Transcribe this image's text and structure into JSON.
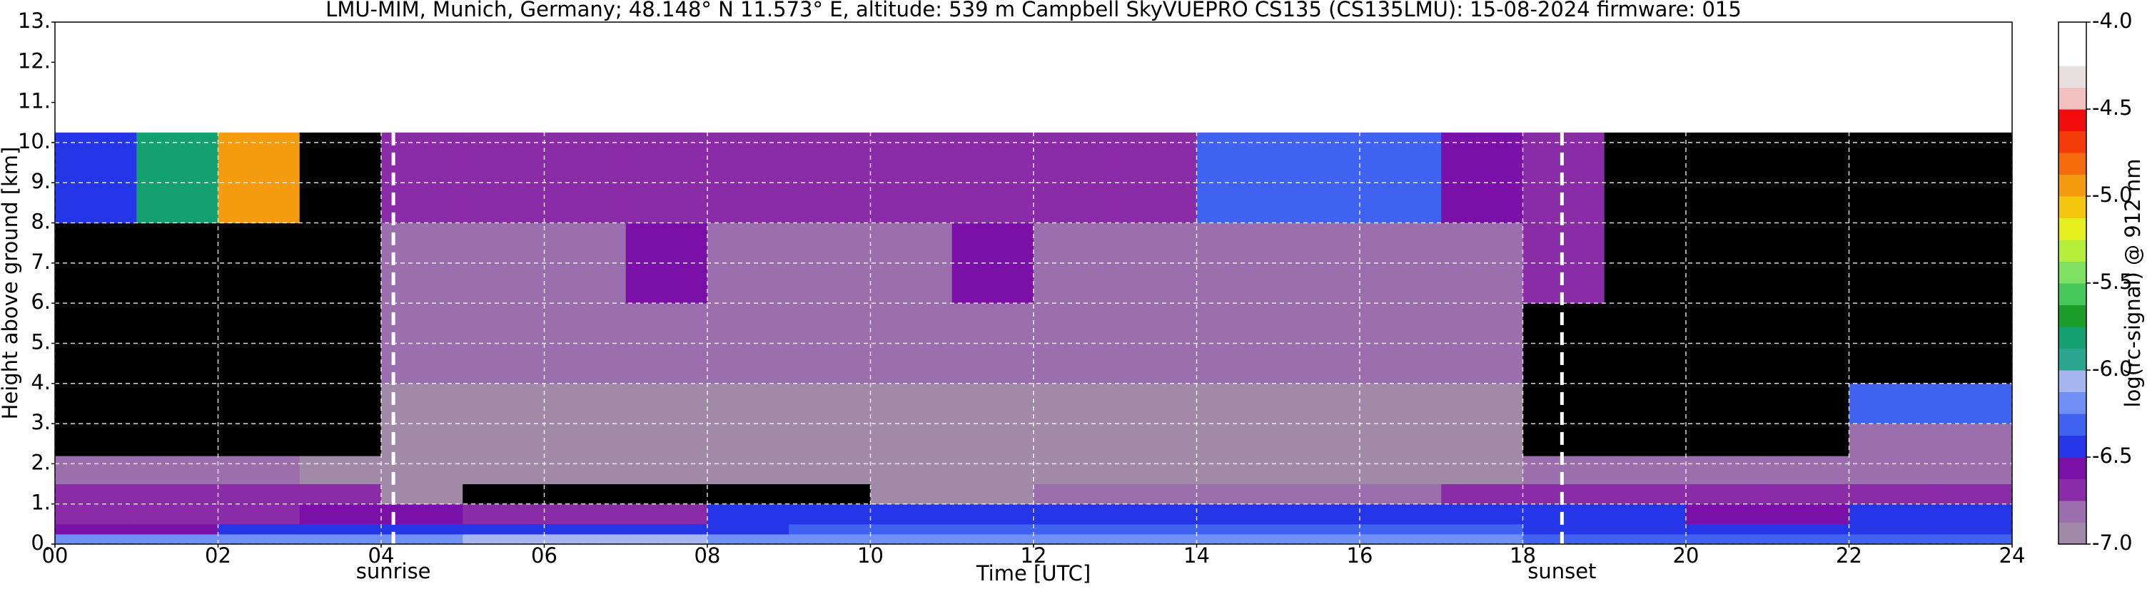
{
  "chart_data": {
    "type": "heatmap",
    "title": "LMU-MIM, Munich, Germany; 48.148° N 11.573° E, altitude: 539 m    Campbell SkyVUEPRO CS135 (CS135LMU): 15-08-2024    firmware: 015",
    "xlabel": "Time [UTC]",
    "ylabel": "Height above ground [km]",
    "clabel": "log(rc-signal) @ 912 nm",
    "xlim": [
      0,
      24
    ],
    "ylim": [
      0,
      13
    ],
    "clim": [
      -7,
      -4
    ],
    "xticks": [
      {
        "value": 0,
        "label": "00"
      },
      {
        "value": 2,
        "label": "02"
      },
      {
        "value": 4,
        "label": "04"
      },
      {
        "value": 6,
        "label": "06"
      },
      {
        "value": 8,
        "label": "08"
      },
      10,
      12,
      14,
      16,
      18,
      20,
      22,
      24
    ],
    "yticks": [
      {
        "value": 0,
        "label": "0."
      },
      {
        "value": 1,
        "label": "1."
      },
      {
        "value": 2,
        "label": "2."
      },
      {
        "value": 3,
        "label": "3."
      },
      {
        "value": 4,
        "label": "4."
      },
      {
        "value": 5,
        "label": "5."
      },
      {
        "value": 6,
        "label": "6."
      },
      {
        "value": 7,
        "label": "7."
      },
      {
        "value": 8,
        "label": "8."
      },
      {
        "value": 9,
        "label": "9."
      },
      {
        "value": 10,
        "label": "10."
      },
      {
        "value": 11,
        "label": "11."
      },
      {
        "value": 12,
        "label": "12."
      },
      {
        "value": 13,
        "label": "13."
      }
    ],
    "cticks": [
      {
        "value": -7,
        "label": "-7.0"
      },
      {
        "value": -6.5,
        "label": "-6.5"
      },
      {
        "value": -6,
        "label": "-6.0"
      },
      {
        "value": -5.5,
        "label": "-5.5"
      },
      {
        "value": -5,
        "label": "-5.0"
      },
      {
        "value": -4.5,
        "label": "-4.5"
      },
      {
        "value": -4,
        "label": "-4.0"
      }
    ],
    "grid": true,
    "grid_color": "#ffffff",
    "missing_color": "#000000",
    "colors": [
      "#a08aa8",
      "#9b6fae",
      "#8a2ba8",
      "#7a10a8",
      "#2536e8",
      "#3f63f0",
      "#6f8ff5",
      "#a7b5f0",
      "#2aa58e",
      "#14a070",
      "#1d9e2a",
      "#46c85a",
      "#7de060",
      "#b6ef3a",
      "#e6ef1e",
      "#f5c60f",
      "#f59b0f",
      "#f56a0a",
      "#f53a0a",
      "#f20c0c",
      "#f2c0c0",
      "#e8e0e0",
      "#ffffff",
      "#ffffff"
    ],
    "markers": [
      {
        "x": 4.15,
        "label": "sunrise"
      },
      {
        "x": 18.48,
        "label": "sunset"
      }
    ],
    "x_edges": [
      0,
      1,
      2,
      3,
      4,
      5,
      6,
      7,
      8,
      9,
      10,
      11,
      12,
      13,
      14,
      15,
      16,
      17,
      18,
      19,
      20,
      21,
      22,
      23,
      24
    ],
    "y_edges": [
      0,
      0.25,
      0.5,
      1,
      1.5,
      2.2,
      3,
      4,
      6,
      8,
      10.25
    ],
    "z": [
      [
        -6.2,
        -6.2,
        -6.2,
        -6.2,
        -6.15,
        -6.1,
        -6.1,
        -6.1,
        -6.2,
        -6.2,
        -6.2,
        -6.2,
        -6.2,
        -6.2,
        -6.2,
        -6.2,
        -6.2,
        -6.2,
        -6.3,
        -6.35,
        -6.35,
        -6.35,
        -6.3,
        -6.3
      ],
      [
        -6.55,
        -6.55,
        -6.5,
        -6.45,
        -6.4,
        -6.5,
        -6.5,
        -6.5,
        -6.4,
        -6.35,
        -6.35,
        -6.35,
        -6.35,
        -6.35,
        -6.35,
        -6.35,
        -6.35,
        -6.35,
        -6.4,
        -6.4,
        -6.4,
        -6.4,
        -6.4,
        -6.4
      ],
      [
        -6.7,
        -6.7,
        -6.65,
        -6.55,
        -6.6,
        -6.75,
        -6.75,
        -6.7,
        -6.5,
        -6.45,
        -6.45,
        -6.4,
        -6.4,
        -6.4,
        -6.4,
        -6.4,
        -6.4,
        -6.4,
        -6.45,
        -6.5,
        -6.55,
        -6.55,
        -6.5,
        -6.5
      ],
      [
        -6.75,
        -6.75,
        -6.75,
        -6.75,
        -6.9,
        null,
        null,
        null,
        null,
        null,
        -6.9,
        -6.9,
        -6.8,
        -6.85,
        -6.8,
        -6.85,
        -6.8,
        -6.75,
        -6.75,
        -6.75,
        -6.7,
        -6.7,
        -6.7,
        -6.75
      ],
      [
        -6.85,
        -6.85,
        -6.85,
        -6.9,
        -6.95,
        -6.95,
        -6.95,
        -6.95,
        -6.95,
        -6.95,
        -6.95,
        -6.95,
        -6.95,
        -6.95,
        -6.95,
        -6.95,
        -6.95,
        -6.95,
        -6.85,
        -6.85,
        -6.85,
        -6.85,
        -6.85,
        -6.85
      ],
      [
        null,
        null,
        null,
        null,
        -6.9,
        -6.9,
        -6.9,
        -6.9,
        -6.9,
        -6.9,
        -6.9,
        -6.9,
        -6.9,
        -6.9,
        -6.9,
        -6.9,
        -6.9,
        -6.9,
        null,
        null,
        null,
        null,
        -6.8,
        -6.8
      ],
      [
        null,
        null,
        null,
        null,
        -6.9,
        -6.9,
        -6.9,
        -6.9,
        -6.9,
        -6.9,
        -6.9,
        -6.9,
        -6.9,
        -6.9,
        -6.9,
        -6.9,
        -6.9,
        -6.9,
        null,
        null,
        null,
        null,
        -6.3,
        -6.3
      ],
      [
        null,
        null,
        null,
        null,
        -6.85,
        -6.85,
        -6.85,
        -6.85,
        -6.85,
        -6.85,
        -6.85,
        -6.85,
        -6.85,
        -6.85,
        -6.85,
        -6.85,
        -6.85,
        -6.85,
        null,
        null,
        null,
        null,
        null,
        null
      ],
      [
        null,
        null,
        null,
        null,
        -6.85,
        -6.85,
        -6.85,
        -6.6,
        -6.85,
        -6.85,
        -6.85,
        -6.6,
        -6.85,
        -6.85,
        -6.85,
        -6.85,
        -6.85,
        -6.85,
        -6.7,
        null,
        null,
        null,
        null,
        null
      ],
      [
        -6.5,
        -5.8,
        -5,
        null,
        -6.7,
        -6.7,
        -6.7,
        -6.7,
        -6.7,
        -6.7,
        -6.7,
        -6.7,
        -6.7,
        -6.7,
        -6.3,
        -6.3,
        -6.3,
        -6.6,
        -6.7,
        null,
        null,
        null,
        null,
        null
      ]
    ]
  }
}
